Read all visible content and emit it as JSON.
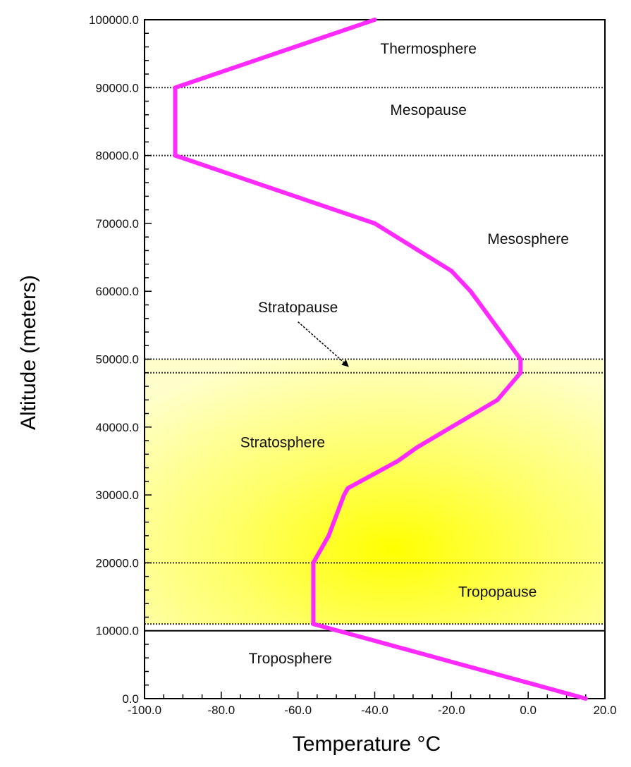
{
  "chart_data": {
    "type": "line",
    "xlabel": "Temperature °C",
    "ylabel": "Altitude (meters)",
    "xlim": [
      -100,
      20
    ],
    "ylim": [
      0,
      100000
    ],
    "x_ticks": [
      {
        "value": -100,
        "label": "-100.0"
      },
      {
        "value": -80,
        "label": "-80.0"
      },
      {
        "value": -60,
        "label": "-60.0"
      },
      {
        "value": -40,
        "label": "-40.0"
      },
      {
        "value": -20,
        "label": "-20.0"
      },
      {
        "value": 0,
        "label": "0.0"
      },
      {
        "value": 20,
        "label": "20.0"
      }
    ],
    "y_ticks": [
      {
        "value": 0,
        "label": "0.0"
      },
      {
        "value": 10000,
        "label": "10000.0"
      },
      {
        "value": 20000,
        "label": "20000.0"
      },
      {
        "value": 30000,
        "label": "30000.0"
      },
      {
        "value": 40000,
        "label": "40000.0"
      },
      {
        "value": 50000,
        "label": "50000.0"
      },
      {
        "value": 60000,
        "label": "60000.0"
      },
      {
        "value": 70000,
        "label": "70000.0"
      },
      {
        "value": 80000,
        "label": "80000.0"
      },
      {
        "value": 90000,
        "label": "90000.0"
      },
      {
        "value": 100000,
        "label": "100000.0"
      }
    ],
    "series": [
      {
        "color": "#ff2aff",
        "x": [
          15,
          -56,
          -56,
          -52,
          -48,
          -47,
          -34,
          -29,
          -20,
          -8,
          -2,
          -2,
          -15,
          -20,
          -40,
          -92,
          -92,
          -40
        ],
        "y": [
          0,
          11000,
          20000,
          24000,
          30000,
          31000,
          35000,
          37000,
          40000,
          44000,
          48000,
          50000,
          60000,
          63000,
          70000,
          80000,
          90000,
          100000
        ]
      }
    ],
    "shaded_bands": [
      {
        "y_from": 11000,
        "y_to": 50000,
        "color": "#ffff00"
      }
    ],
    "dotted_lines": [
      11000,
      20000,
      48000,
      50000,
      80000,
      90000
    ],
    "solid_lines": [
      10000
    ],
    "region_labels": [
      {
        "text": "Thermosphere",
        "x": -26,
        "y": 95000
      },
      {
        "text": "Mesopause",
        "x": -26,
        "y": 86000
      },
      {
        "text": "Mesosphere",
        "x": 0,
        "y": 67000
      },
      {
        "text": "Stratopause",
        "x": -60,
        "y": 56900
      },
      {
        "text": "Stratosphere",
        "x": -64,
        "y": 37000
      },
      {
        "text": "Tropopause",
        "x": -8,
        "y": 15000
      },
      {
        "text": "Troposphere",
        "x": -62,
        "y": 5200
      }
    ],
    "annotation_arrow": {
      "from": [
        -60,
        55500
      ],
      "to": [
        -47,
        49000
      ]
    }
  }
}
